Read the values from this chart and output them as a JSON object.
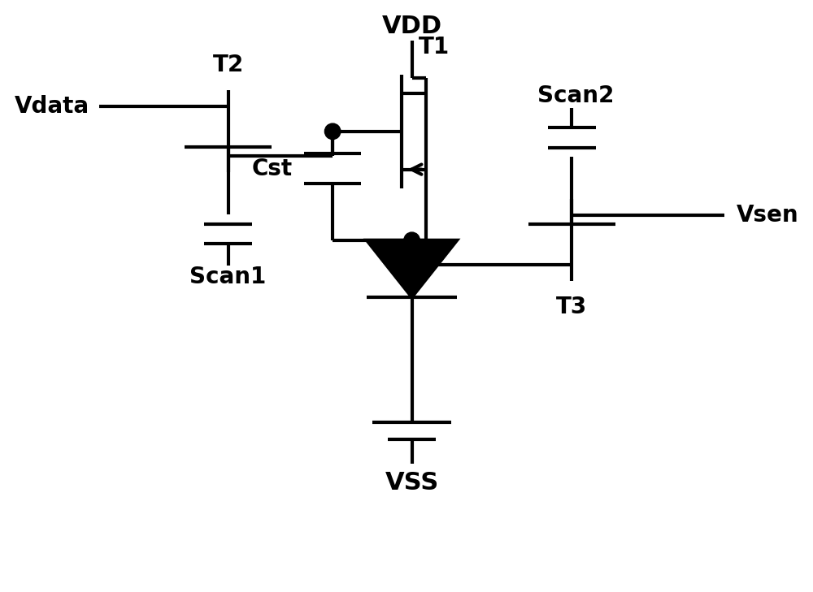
{
  "bg_color": "#ffffff",
  "lc": "#000000",
  "lw": 3.0,
  "figsize": [
    10.0,
    7.29
  ],
  "dpi": 100,
  "fs": 20,
  "fsl": 22,
  "xlim": [
    0,
    10
  ],
  "ylim": [
    0,
    7.29
  ]
}
